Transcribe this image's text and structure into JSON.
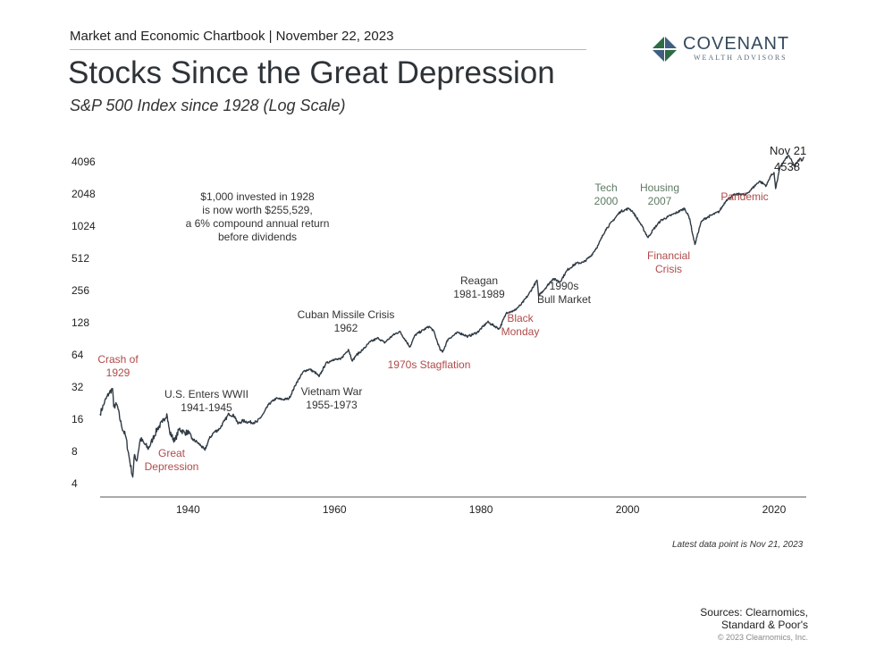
{
  "header": {
    "report_line": "Market and Economic Chartbook | November 22, 2023",
    "title": "Stocks Since the Great Depression",
    "subtitle": "S&P 500 Index since 1928 (Log Scale)"
  },
  "logo": {
    "name": "COVENANT",
    "tagline": "WEALTH ADVISORS",
    "icon": "diamond-quadrant-icon"
  },
  "colors": {
    "line": "#2f3a44",
    "crisis_label": "#b04a4a",
    "neutral_label": "#333333",
    "green_label": "#5d7a64"
  },
  "chart_data": {
    "type": "line",
    "title": "Stocks Since the Great Depression",
    "subtitle": "S&P 500 Index since 1928 (Log Scale)",
    "xlabel": "",
    "ylabel": "",
    "y_scale": "log2",
    "xlim": [
      1928,
      2024.4
    ],
    "ylim": [
      4,
      5000
    ],
    "grid": false,
    "x_ticks": [
      1940,
      1960,
      1980,
      2000,
      2020
    ],
    "y_ticks": [
      4,
      8,
      16,
      32,
      64,
      128,
      256,
      512,
      1024,
      2048,
      4096
    ],
    "series": [
      {
        "name": "S&P 500 Index",
        "x": [
          1928.0,
          1928.6,
          1929.2,
          1929.7,
          1929.85,
          1930.3,
          1930.9,
          1931.5,
          1932.0,
          1932.45,
          1932.7,
          1933.0,
          1933.5,
          1934.0,
          1934.6,
          1935.2,
          1935.8,
          1936.5,
          1937.1,
          1937.5,
          1938.2,
          1938.8,
          1939.5,
          1940.2,
          1940.5,
          1941.2,
          1941.8,
          1942.3,
          1942.9,
          1943.5,
          1944.3,
          1945.0,
          1945.6,
          1946.4,
          1946.8,
          1947.5,
          1948.3,
          1949.4,
          1950.3,
          1951.0,
          1952.0,
          1953.0,
          1953.8,
          1954.8,
          1955.8,
          1956.6,
          1957.5,
          1957.9,
          1958.8,
          1959.8,
          1960.8,
          1961.9,
          1962.45,
          1962.9,
          1963.9,
          1964.9,
          1966.0,
          1966.8,
          1968.0,
          1968.9,
          1970.3,
          1971.0,
          1972.9,
          1973.5,
          1974.4,
          1974.75,
          1975.5,
          1976.9,
          1978.2,
          1979.5,
          1980.9,
          1982.5,
          1983.5,
          1984.5,
          1985.5,
          1986.5,
          1987.65,
          1987.85,
          1988.8,
          1989.8,
          1990.8,
          1991.8,
          1993.0,
          1994.0,
          1995.0,
          1996.0,
          1997.0,
          1998.0,
          1999.0,
          2000.2,
          2000.7,
          2001.7,
          2002.8,
          2003.5,
          2004.5,
          2005.5,
          2006.5,
          2007.8,
          2008.5,
          2008.9,
          2009.2,
          2010.0,
          2010.5,
          2011.5,
          2012.5,
          2013.5,
          2014.5,
          2015.5,
          2016.1,
          2017.0,
          2018.0,
          2018.95,
          2019.5,
          2020.0,
          2020.22,
          2020.8,
          2021.5,
          2022.0,
          2022.8,
          2023.2,
          2023.6,
          2023.8,
          2024.1
        ],
        "values": [
          18,
          23,
          28,
          31,
          21,
          22,
          14,
          11,
          6.8,
          4.6,
          7.5,
          6.5,
          10.5,
          9.5,
          8.5,
          10.5,
          13,
          15,
          18,
          12,
          10,
          13,
          12,
          12,
          10.5,
          9.8,
          9,
          8.2,
          10.5,
          12,
          13,
          15.5,
          18,
          17,
          14.5,
          15.5,
          15,
          15,
          18,
          22,
          25,
          24.5,
          25,
          35,
          45,
          47,
          43,
          40,
          53,
          58,
          58,
          72,
          56,
          63,
          72,
          85,
          92,
          83,
          98,
          106,
          76,
          98,
          118,
          108,
          72,
          68,
          90,
          104,
          95,
          104,
          130,
          112,
          160,
          165,
          190,
          235,
          320,
          230,
          270,
          330,
          310,
          400,
          460,
          470,
          540,
          680,
          950,
          1150,
          1400,
          1500,
          1400,
          1100,
          800,
          950,
          1150,
          1250,
          1350,
          1500,
          1200,
          850,
          690,
          1100,
          1200,
          1300,
          1400,
          1800,
          2000,
          2050,
          2000,
          2300,
          2700,
          2450,
          3000,
          3250,
          2300,
          3600,
          4300,
          4700,
          3700,
          4100,
          4400,
          4200,
          4538
        ]
      }
    ],
    "end_label": {
      "date": "Nov 21",
      "value": "4538"
    },
    "annotations": [
      {
        "text_lines": [
          "Crash of",
          "1929"
        ],
        "style": "crisis"
      },
      {
        "text_lines": [
          "Great",
          "Depression"
        ],
        "style": "crisis"
      },
      {
        "text_lines": [
          "U.S. Enters WWII",
          "1941-1945"
        ],
        "style": "neutral"
      },
      {
        "text_lines": [
          "$1,000 invested in 1928",
          "is now worth $255,529,",
          "a 6% compound annual return",
          "before dividends"
        ],
        "style": "neutral"
      },
      {
        "text_lines": [
          "Cuban Missile Crisis",
          "1962"
        ],
        "style": "neutral"
      },
      {
        "text_lines": [
          "Vietnam War",
          "1955-1973"
        ],
        "style": "neutral"
      },
      {
        "text_lines": [
          "1970s Stagflation"
        ],
        "style": "crisis"
      },
      {
        "text_lines": [
          "Reagan",
          "1981-1989"
        ],
        "style": "neutral"
      },
      {
        "text_lines": [
          "Black",
          "Monday"
        ],
        "style": "crisis"
      },
      {
        "text_lines": [
          "1990s",
          "Bull Market"
        ],
        "style": "neutral"
      },
      {
        "text_lines": [
          "Tech",
          "2000"
        ],
        "style": "green"
      },
      {
        "text_lines": [
          "Housing",
          "2007"
        ],
        "style": "green"
      },
      {
        "text_lines": [
          "Financial",
          "Crisis"
        ],
        "style": "crisis"
      },
      {
        "text_lines": [
          "Pandemic"
        ],
        "style": "crisis"
      }
    ]
  },
  "footer": {
    "latest_note": "Latest data point is Nov 21, 2023",
    "sources_line1": "Sources: Clearnomics,",
    "sources_line2": "Standard & Poor's",
    "copyright": "© 2023 Clearnomics, Inc."
  }
}
